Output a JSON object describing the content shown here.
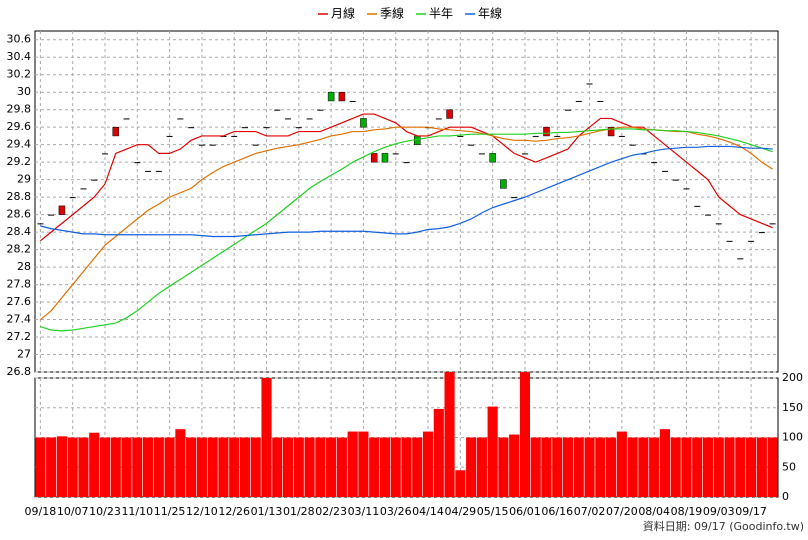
{
  "chart_data": {
    "type": "candlestick",
    "categories": [
      "09/18",
      null,
      null,
      "10/07",
      null,
      null,
      "10/23",
      null,
      null,
      "11/10",
      null,
      null,
      "11/25",
      null,
      null,
      "12/10",
      null,
      null,
      "12/26",
      null,
      null,
      "01/13",
      null,
      null,
      "01/28",
      null,
      null,
      "02/23",
      null,
      null,
      "03/11",
      null,
      null,
      "03/26",
      null,
      null,
      "04/14",
      null,
      null,
      "04/29",
      null,
      null,
      "05/15",
      null,
      null,
      "06/01",
      null,
      null,
      "06/16",
      null,
      null,
      "07/02",
      null,
      null,
      "07/20",
      null,
      null,
      "08/04",
      null,
      null,
      "08/19",
      null,
      null,
      "09/03",
      null,
      null,
      "09/17",
      null,
      null
    ],
    "open": [
      28.5,
      28.6,
      28.6,
      28.8,
      28.9,
      29.0,
      29.3,
      29.5,
      29.7,
      29.2,
      29.1,
      29.1,
      29.5,
      29.7,
      29.6,
      29.4,
      29.4,
      29.5,
      29.5,
      29.6,
      29.4,
      29.6,
      29.8,
      29.7,
      29.6,
      29.7,
      29.8,
      30.0,
      29.9,
      29.9,
      29.7,
      29.2,
      29.3,
      29.3,
      29.2,
      29.5,
      29.6,
      29.7,
      29.7,
      29.5,
      29.4,
      29.3,
      29.3,
      29.0,
      28.8,
      29.3,
      29.5,
      29.5,
      29.5,
      29.8,
      29.9,
      30.1,
      29.9,
      29.5,
      29.5,
      29.4,
      29.3,
      29.2,
      29.1,
      29.0,
      28.9,
      28.7,
      28.6,
      28.5,
      28.3,
      28.1,
      28.3,
      28.4,
      28.5
    ],
    "close": [
      28.5,
      28.6,
      28.7,
      28.8,
      28.9,
      29.0,
      29.3,
      29.6,
      29.7,
      29.2,
      29.1,
      29.1,
      29.5,
      29.7,
      29.6,
      29.4,
      29.4,
      29.5,
      29.5,
      29.6,
      29.4,
      29.6,
      29.8,
      29.7,
      29.6,
      29.7,
      29.8,
      29.9,
      30.0,
      29.9,
      29.6,
      29.3,
      29.2,
      29.3,
      29.2,
      29.4,
      29.6,
      29.7,
      29.8,
      29.5,
      29.4,
      29.3,
      29.2,
      28.9,
      28.8,
      29.3,
      29.5,
      29.6,
      29.5,
      29.8,
      29.9,
      30.1,
      29.9,
      29.6,
      29.5,
      29.4,
      29.3,
      29.2,
      29.1,
      29.0,
      28.9,
      28.7,
      28.6,
      28.5,
      28.3,
      28.1,
      28.3,
      28.4,
      28.5
    ],
    "up_color": "#e00000",
    "down_color": "#00b000",
    "series": [
      {
        "name": "月線",
        "color": "#e00000",
        "values": [
          28.3,
          28.4,
          28.5,
          28.6,
          28.7,
          28.8,
          28.95,
          29.3,
          29.35,
          29.4,
          29.4,
          29.3,
          29.3,
          29.35,
          29.45,
          29.5,
          29.5,
          29.5,
          29.55,
          29.55,
          29.55,
          29.5,
          29.5,
          29.5,
          29.55,
          29.55,
          29.55,
          29.6,
          29.65,
          29.7,
          29.75,
          29.75,
          29.7,
          29.65,
          29.55,
          29.5,
          29.5,
          29.55,
          29.6,
          29.6,
          29.6,
          29.55,
          29.5,
          29.4,
          29.3,
          29.25,
          29.2,
          29.25,
          29.3,
          29.35,
          29.5,
          29.6,
          29.7,
          29.7,
          29.65,
          29.6,
          29.6,
          29.5,
          29.4,
          29.3,
          29.2,
          29.1,
          29.0,
          28.8,
          28.7,
          28.6,
          28.55,
          28.5,
          28.45
        ]
      },
      {
        "name": "季線",
        "color": "#e07000",
        "values": [
          27.4,
          27.5,
          27.65,
          27.8,
          27.95,
          28.1,
          28.25,
          28.35,
          28.45,
          28.55,
          28.65,
          28.72,
          28.8,
          28.85,
          28.9,
          29.0,
          29.08,
          29.15,
          29.2,
          29.25,
          29.3,
          29.33,
          29.36,
          29.38,
          29.4,
          29.43,
          29.46,
          29.5,
          29.52,
          29.55,
          29.55,
          29.57,
          29.58,
          29.6,
          29.6,
          29.6,
          29.6,
          29.58,
          29.57,
          29.56,
          29.55,
          29.53,
          29.5,
          29.47,
          29.45,
          29.45,
          29.44,
          29.45,
          29.47,
          29.48,
          29.5,
          29.53,
          29.56,
          29.58,
          29.6,
          29.6,
          29.58,
          29.57,
          29.56,
          29.55,
          29.55,
          29.52,
          29.5,
          29.47,
          29.43,
          29.38,
          29.3,
          29.2,
          29.12
        ]
      },
      {
        "name": "半年",
        "color": "#20d020",
        "values": [
          27.32,
          27.28,
          27.27,
          27.28,
          27.3,
          27.32,
          27.34,
          27.36,
          27.42,
          27.5,
          27.6,
          27.7,
          27.78,
          27.86,
          27.94,
          28.02,
          28.1,
          28.18,
          28.26,
          28.34,
          28.42,
          28.5,
          28.6,
          28.7,
          28.8,
          28.9,
          28.98,
          29.05,
          29.12,
          29.2,
          29.26,
          29.32,
          29.37,
          29.41,
          29.44,
          29.46,
          29.48,
          29.5,
          29.5,
          29.51,
          29.52,
          29.52,
          29.52,
          29.52,
          29.52,
          29.52,
          29.53,
          29.53,
          29.54,
          29.54,
          29.55,
          29.56,
          29.57,
          29.58,
          29.58,
          29.58,
          29.57,
          29.57,
          29.56,
          29.56,
          29.55,
          29.54,
          29.52,
          29.5,
          29.47,
          29.44,
          29.4,
          29.36,
          29.32
        ]
      },
      {
        "name": "年線",
        "color": "#1060e0",
        "values": [
          28.47,
          28.44,
          28.42,
          28.4,
          28.38,
          28.38,
          28.37,
          28.37,
          28.37,
          28.37,
          28.37,
          28.37,
          28.37,
          28.37,
          28.37,
          28.36,
          28.35,
          28.35,
          28.35,
          28.36,
          28.37,
          28.38,
          28.39,
          28.4,
          28.4,
          28.4,
          28.41,
          28.41,
          28.41,
          28.41,
          28.41,
          28.4,
          28.39,
          28.38,
          28.38,
          28.4,
          28.43,
          28.44,
          28.46,
          28.5,
          28.55,
          28.62,
          28.68,
          28.72,
          28.76,
          28.8,
          28.85,
          28.9,
          28.95,
          29.0,
          29.05,
          29.1,
          29.15,
          29.2,
          29.24,
          29.28,
          29.3,
          29.33,
          29.35,
          29.36,
          29.37,
          29.37,
          29.38,
          29.38,
          29.38,
          29.37,
          29.36,
          29.36,
          29.35
        ]
      }
    ],
    "ylim": [
      26.8,
      30.7
    ],
    "yticks": [
      26.8,
      27,
      27.2,
      27.4,
      27.6,
      27.8,
      28,
      28.2,
      28.4,
      28.6,
      28.8,
      29,
      29.2,
      29.4,
      29.6,
      29.8,
      30,
      30.2,
      30.4,
      30.6
    ],
    "volume": {
      "color": "#ff0000",
      "values": [
        100,
        100,
        102,
        100,
        100,
        108,
        100,
        100,
        100,
        100,
        100,
        100,
        100,
        114,
        100,
        100,
        100,
        100,
        100,
        100,
        100,
        200,
        100,
        100,
        100,
        100,
        100,
        100,
        100,
        110,
        110,
        100,
        100,
        100,
        100,
        100,
        110,
        148,
        210,
        45,
        100,
        100,
        152,
        100,
        105,
        210,
        100,
        100,
        100,
        100,
        100,
        100,
        100,
        100,
        110,
        100,
        100,
        100,
        114,
        100,
        100,
        100,
        100,
        100,
        100,
        100,
        100,
        100,
        100
      ]
    },
    "y2lim": [
      0,
      200
    ],
    "y2ticks": [
      0,
      50,
      100,
      150,
      200
    ],
    "grid": true,
    "legend": "top",
    "footer": "資料日期: 09/17  (Goodinfo.tw)"
  }
}
